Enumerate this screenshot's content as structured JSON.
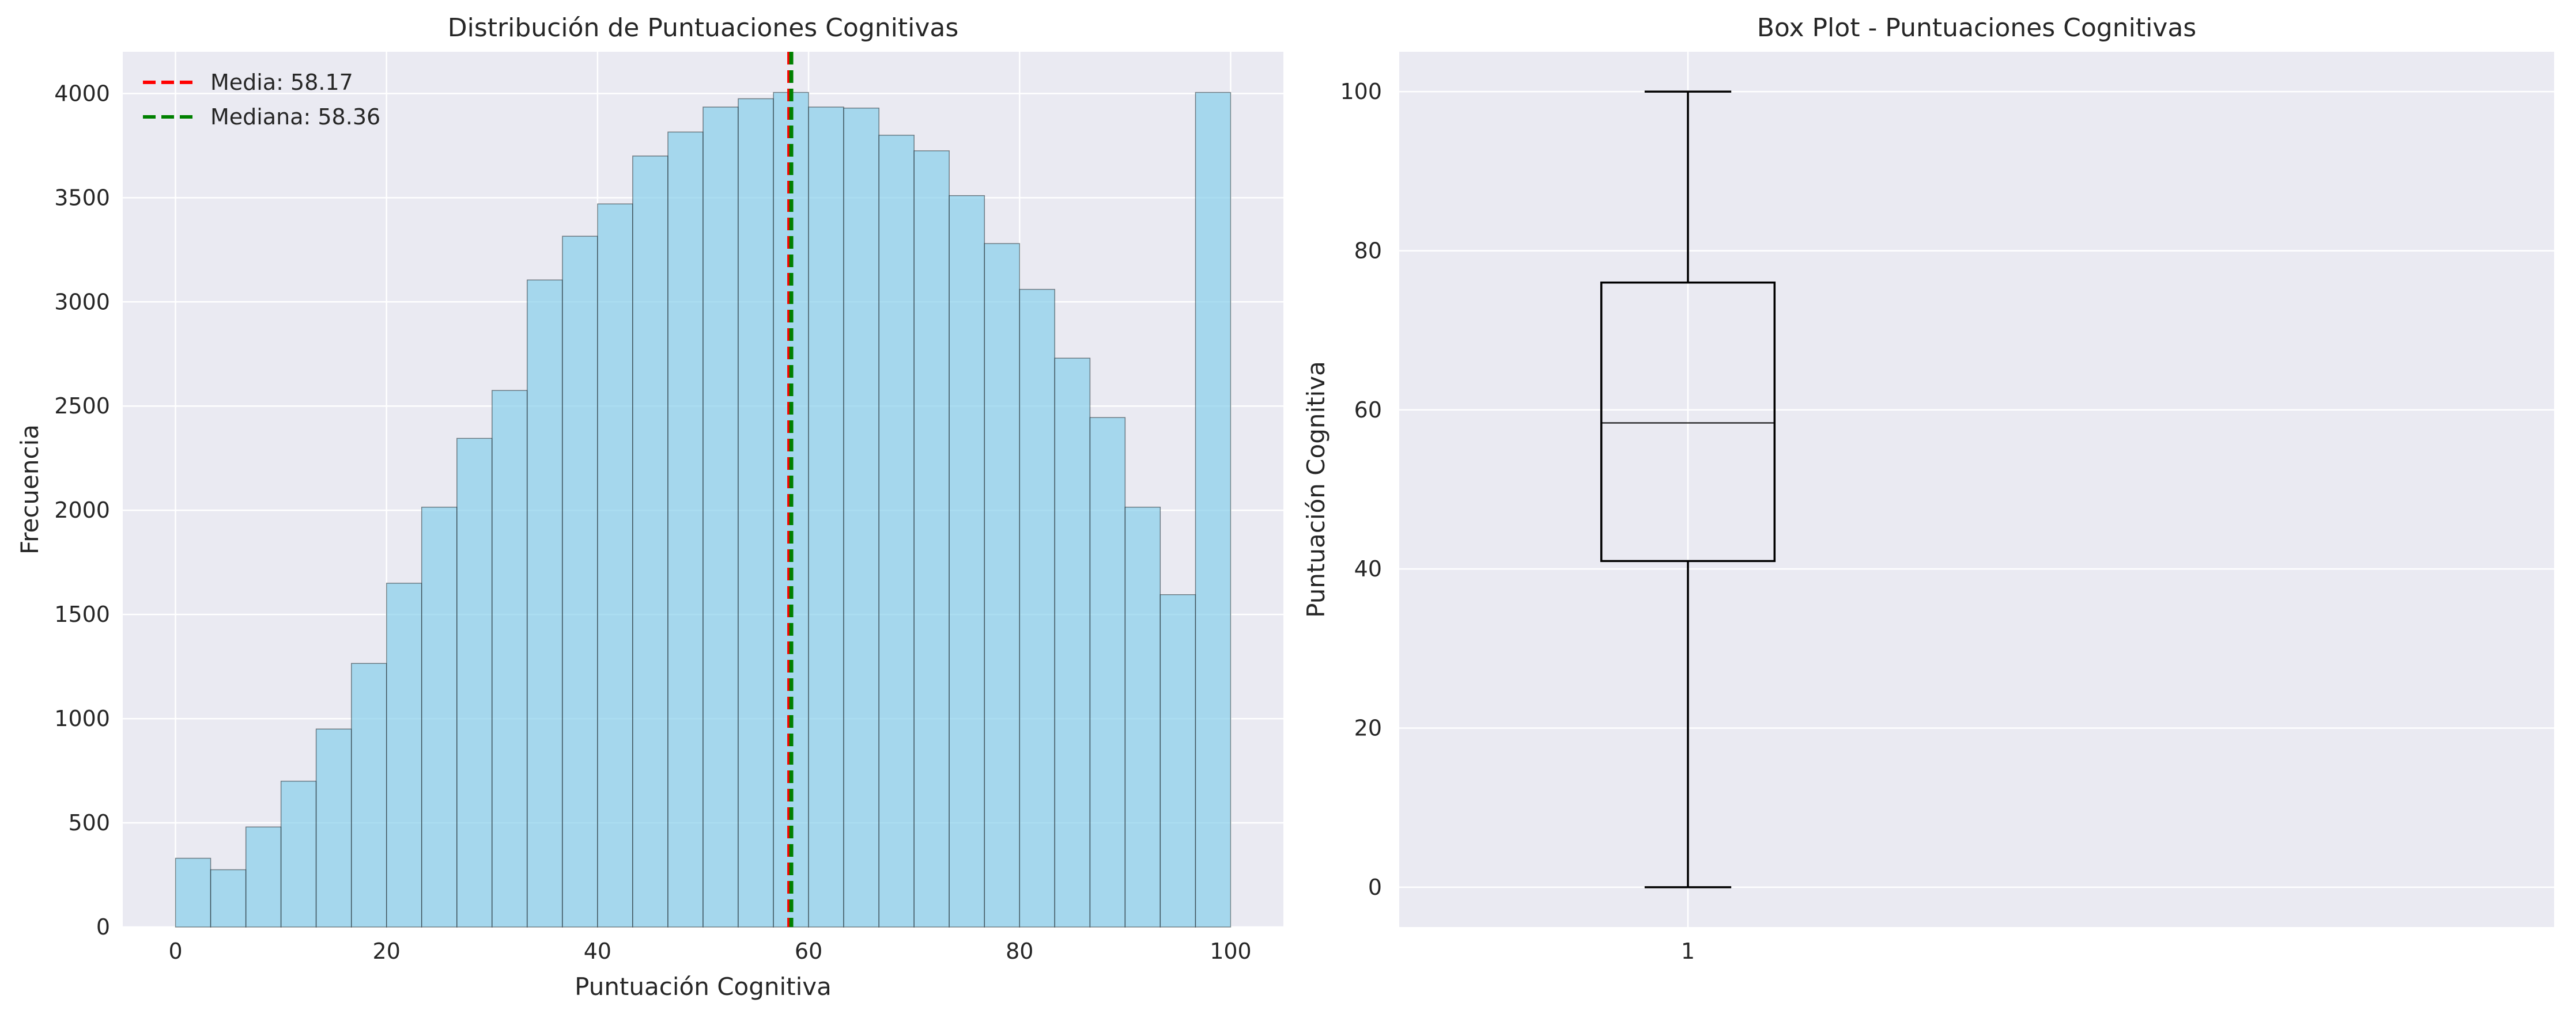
{
  "chart_data": [
    {
      "type": "bar",
      "title": "Distribución de Puntuaciones Cognitivas",
      "xlabel": "Puntuación Cognitiva",
      "ylabel": "Frecuencia",
      "xlim": [
        -5,
        105
      ],
      "ylim": [
        0,
        4200
      ],
      "xticks": [
        0,
        20,
        40,
        60,
        80,
        100
      ],
      "yticks": [
        0,
        500,
        1000,
        1500,
        2000,
        2500,
        3000,
        3500,
        4000
      ],
      "bin_edges": [
        0,
        3.33,
        6.67,
        10,
        13.33,
        16.67,
        20,
        23.33,
        26.67,
        30,
        33.33,
        36.67,
        40,
        43.33,
        46.67,
        50,
        53.33,
        56.67,
        60,
        63.33,
        66.67,
        70,
        73.33,
        76.67,
        80,
        83.33,
        86.67,
        90,
        93.33,
        96.67,
        100
      ],
      "values": [
        330,
        275,
        480,
        700,
        950,
        1265,
        1650,
        2015,
        2345,
        2575,
        3105,
        3315,
        3470,
        3700,
        3815,
        3935,
        3975,
        4005,
        3935,
        3930,
        3800,
        3725,
        3510,
        3280,
        3060,
        2730,
        2445,
        2015,
        1595,
        4005
      ],
      "bar_color": "#87ceeb",
      "lines": [
        {
          "label": "Media: 58.17",
          "x": 58.17,
          "color": "#ff0000"
        },
        {
          "label": "Mediana: 58.36",
          "x": 58.36,
          "color": "#008000"
        }
      ],
      "legend": "top-left",
      "grid": true
    },
    {
      "type": "box",
      "title": "Box Plot - Puntuaciones Cognitivas",
      "xlabel": "",
      "ylabel": "Puntuación Cognitiva",
      "ylim": [
        -5,
        105
      ],
      "xlim": [
        0.5,
        2.5
      ],
      "xticks": [
        1
      ],
      "xticklabels": [
        "1"
      ],
      "yticks": [
        0,
        20,
        40,
        60,
        80,
        100
      ],
      "box": {
        "position": 1,
        "whisker_low": 0,
        "q1": 41,
        "median": 58.36,
        "q3": 76,
        "whisker_high": 100
      },
      "grid": true
    }
  ]
}
